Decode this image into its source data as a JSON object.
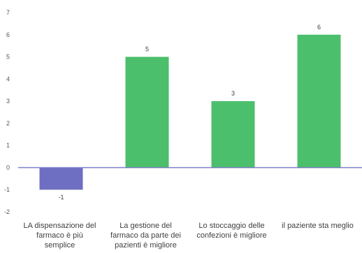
{
  "chart_data": {
    "type": "bar",
    "categories": [
      "LA dispensazione del farmaco è più semplice",
      "La gestione del farmaco da parte dei pazienti è migliore",
      "Lo stoccaggio delle confezioni è migliore",
      "il paziente sta meglio"
    ],
    "category_lines": [
      [
        "LA dispensazione del",
        "farmaco è più",
        "semplice"
      ],
      [
        "La gestione del",
        "farmaco da parte dei",
        "pazienti è migliore"
      ],
      [
        "Lo stoccaggio delle",
        "confezioni è migliore"
      ],
      [
        "il paziente sta meglio"
      ]
    ],
    "values": [
      -1,
      5,
      3,
      6
    ],
    "data_labels": [
      "-1",
      "5",
      "3",
      "6"
    ],
    "yticks": [
      "7",
      "6",
      "5",
      "4",
      "3",
      "2",
      "1",
      "0",
      "-1",
      "-2"
    ],
    "ylim": [
      -2,
      7
    ],
    "bar_colors": [
      "#6e6fc2",
      "#4bbf6b",
      "#4bbf6b",
      "#4bbf6b"
    ],
    "zero_line_color": "#7d7fc8",
    "grid": false,
    "legend": "none"
  }
}
